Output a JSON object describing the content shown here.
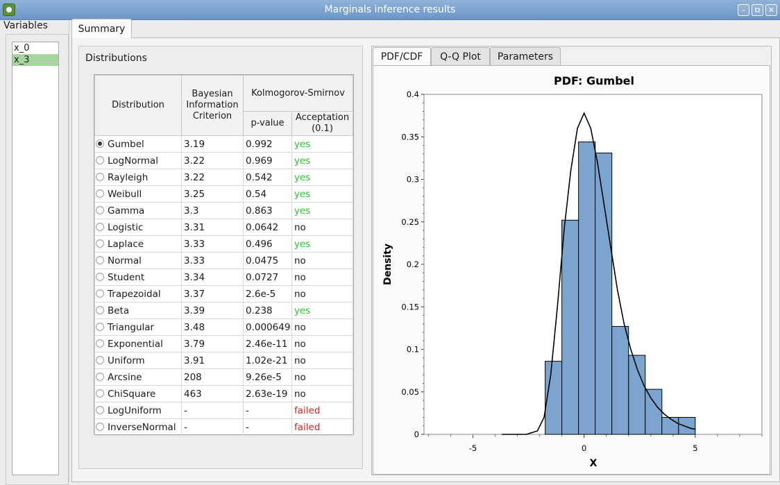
{
  "window": {
    "title": "Marginals inference results",
    "btn_min": "–",
    "btn_max": "⧉",
    "btn_close": "✕"
  },
  "variables": {
    "label": "Variables",
    "items": [
      "x_0",
      "x_3"
    ],
    "selected": 1
  },
  "tabs": {
    "summary": "Summary"
  },
  "distributions": {
    "label": "Distributions",
    "headers": {
      "distribution": "Distribution",
      "bic_l1": "Bayesian",
      "bic_l2": "Information",
      "bic_l3": "Criterion",
      "ks": "Kolmogorov-Smirnov",
      "pvalue": "p-value",
      "accept_l1": "Acceptation",
      "accept_l2": "(0.1)"
    },
    "rows": [
      {
        "name": "Gumbel",
        "bic": "3.19",
        "p": "0.992",
        "acc": "yes"
      },
      {
        "name": "LogNormal",
        "bic": "3.22",
        "p": "0.969",
        "acc": "yes"
      },
      {
        "name": "Rayleigh",
        "bic": "3.22",
        "p": "0.542",
        "acc": "yes"
      },
      {
        "name": "Weibull",
        "bic": "3.25",
        "p": "0.54",
        "acc": "yes"
      },
      {
        "name": "Gamma",
        "bic": "3.3",
        "p": "0.863",
        "acc": "yes"
      },
      {
        "name": "Logistic",
        "bic": "3.31",
        "p": "0.0642",
        "acc": "no"
      },
      {
        "name": "Laplace",
        "bic": "3.33",
        "p": "0.496",
        "acc": "yes"
      },
      {
        "name": "Normal",
        "bic": "3.33",
        "p": "0.0475",
        "acc": "no"
      },
      {
        "name": "Student",
        "bic": "3.34",
        "p": "0.0727",
        "acc": "no"
      },
      {
        "name": "Trapezoidal",
        "bic": "3.37",
        "p": "2.6e-5",
        "acc": "no"
      },
      {
        "name": "Beta",
        "bic": "3.39",
        "p": "0.238",
        "acc": "yes"
      },
      {
        "name": "Triangular",
        "bic": "3.48",
        "p": "0.000649",
        "acc": "no"
      },
      {
        "name": "Exponential",
        "bic": "3.79",
        "p": "2.46e-11",
        "acc": "no"
      },
      {
        "name": "Uniform",
        "bic": "3.91",
        "p": "1.02e-21",
        "acc": "no"
      },
      {
        "name": "Arcsine",
        "bic": "208",
        "p": "9.26e-5",
        "acc": "no"
      },
      {
        "name": "ChiSquare",
        "bic": "463",
        "p": "2.63e-19",
        "acc": "no"
      },
      {
        "name": "LogUniform",
        "bic": "-",
        "p": "-",
        "acc": "failed"
      },
      {
        "name": "InverseNormal",
        "bic": "-",
        "p": "-",
        "acc": "failed"
      }
    ],
    "selected": 0
  },
  "plot_tabs": [
    "PDF/CDF",
    "Q-Q Plot",
    "Parameters"
  ],
  "colors": {
    "bar_fill": "#7ba5cf",
    "bar_stroke": "#000000",
    "yes": "#1ecc1e",
    "failed": "#e02020"
  },
  "chart_data": {
    "type": "bar",
    "title": "PDF: Gumbel",
    "xlabel": "X",
    "ylabel": "Density",
    "xlim": [
      -7.2,
      8.0
    ],
    "ylim": [
      0,
      0.4
    ],
    "xticks": [
      -5,
      0,
      5
    ],
    "yticks": [
      0,
      0.05,
      0.1,
      0.15,
      0.2,
      0.25,
      0.3,
      0.35,
      0.4
    ],
    "bins": [
      {
        "x0": -1.75,
        "x1": -1.0,
        "y": 0.086
      },
      {
        "x0": -1.0,
        "x1": -0.25,
        "y": 0.252
      },
      {
        "x0": -0.25,
        "x1": 0.5,
        "y": 0.344
      },
      {
        "x0": 0.5,
        "x1": 1.25,
        "y": 0.331
      },
      {
        "x0": 1.25,
        "x1": 2.0,
        "y": 0.127
      },
      {
        "x0": 2.0,
        "x1": 2.75,
        "y": 0.093
      },
      {
        "x0": 2.75,
        "x1": 3.5,
        "y": 0.053
      },
      {
        "x0": 3.5,
        "x1": 4.25,
        "y": 0.02
      },
      {
        "x0": 4.25,
        "x1": 5.0,
        "y": 0.02
      }
    ],
    "pdf_curve": {
      "x": [
        -3.7,
        -2.6,
        -2.1,
        -1.8,
        -1.5,
        -1.2,
        -0.9,
        -0.6,
        -0.3,
        0.0,
        0.3,
        0.6,
        0.9,
        1.2,
        1.5,
        1.8,
        2.1,
        2.4,
        2.7,
        3.0,
        3.3,
        3.6,
        3.9,
        4.2,
        4.5,
        4.8,
        5.0
      ],
      "y": [
        0.0,
        0.0,
        0.004,
        0.02,
        0.07,
        0.15,
        0.24,
        0.31,
        0.36,
        0.378,
        0.36,
        0.32,
        0.27,
        0.22,
        0.17,
        0.13,
        0.1,
        0.076,
        0.057,
        0.043,
        0.032,
        0.024,
        0.018,
        0.013,
        0.01,
        0.007,
        0.006
      ]
    }
  }
}
